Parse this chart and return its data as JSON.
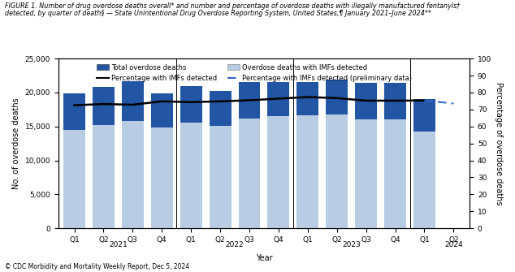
{
  "title_line1": "FIGURE 1. Number of drug overdose deaths overall* and number and percentage of overdose deaths with illegally manufactured fentanyls†",
  "title_line2": "detected, by quarter of death§ — State Unintentional Drug Overdose Reporting System, United States,¶ January 2021–June 2024**",
  "xlabel": "Year",
  "ylabel_left": "No. of overdose deaths",
  "ylabel_right": "Percentage of overdose deaths",
  "quarters": [
    "Q1",
    "Q2",
    "Q3",
    "Q4",
    "Q1",
    "Q2",
    "Q3",
    "Q4",
    "Q1",
    "Q2",
    "Q3",
    "Q4",
    "Q1",
    "Q2"
  ],
  "years_labels": [
    "2021",
    "2022",
    "2023",
    "2024"
  ],
  "total_deaths": [
    19900,
    20800,
    21700,
    19900,
    21000,
    20200,
    21500,
    21600,
    21600,
    21900,
    21400,
    21400,
    19000,
    null
  ],
  "imf_deaths": [
    14500,
    15200,
    15800,
    14900,
    15600,
    15100,
    16200,
    16500,
    16700,
    16800,
    16100,
    16100,
    14300,
    null
  ],
  "pct_solid": [
    72.5,
    73.2,
    72.8,
    74.8,
    74.3,
    74.8,
    75.4,
    76.4,
    77.3,
    76.7,
    75.2,
    75.2,
    75.3,
    null
  ],
  "pct_dashed": [
    null,
    null,
    null,
    null,
    null,
    null,
    null,
    null,
    null,
    null,
    null,
    null,
    75.3,
    73.5
  ],
  "bar_color_total": "#2255a4",
  "bar_color_imf": "#b8cce4",
  "line_color_solid": "#000000",
  "line_color_dashed": "#3366cc",
  "ylim_left": [
    0,
    25000
  ],
  "ylim_right": [
    0,
    100
  ],
  "yticks_left": [
    0,
    5000,
    10000,
    15000,
    20000,
    25000
  ],
  "yticks_right": [
    0,
    10,
    20,
    30,
    40,
    50,
    60,
    70,
    80,
    90,
    100
  ],
  "footer": "© CDC Morbidity and Mortality Weekly Report, Dec 5, 2024",
  "background_color": "#ffffff",
  "title_fontsize": 5.8,
  "axis_fontsize": 7,
  "tick_fontsize": 6.5
}
